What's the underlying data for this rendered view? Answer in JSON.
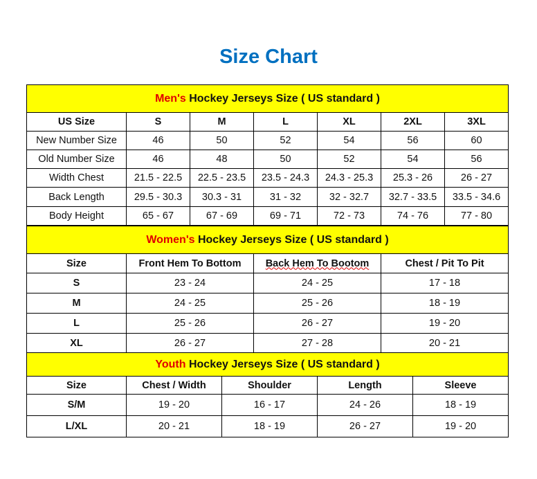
{
  "title": "Size Chart",
  "colors": {
    "title": "#0070c0",
    "header_bg": "#ffff00",
    "accent_red": "#e00000"
  },
  "mens": {
    "header_red": "Men's",
    "header_rest": " Hockey Jerseys Size ( US standard )",
    "columns": [
      "US Size",
      "S",
      "M",
      "L",
      "XL",
      "2XL",
      "3XL"
    ],
    "rows": [
      [
        "New Number Size",
        "46",
        "50",
        "52",
        "54",
        "56",
        "60"
      ],
      [
        "Old Number Size",
        "46",
        "48",
        "50",
        "52",
        "54",
        "56"
      ],
      [
        "Width Chest",
        "21.5 - 22.5",
        "22.5 - 23.5",
        "23.5 - 24.3",
        "24.3 - 25.3",
        "25.3 - 26",
        "26 - 27"
      ],
      [
        "Back Length",
        "29.5 - 30.3",
        "30.3 - 31",
        "31 - 32",
        "32 - 32.7",
        "32.7 - 33.5",
        "33.5 - 34.6"
      ],
      [
        "Body Height",
        "65 - 67",
        "67 - 69",
        "69 - 71",
        "72 - 73",
        "74 - 76",
        "77 - 80"
      ]
    ]
  },
  "womens": {
    "header_red": "Women's",
    "header_rest": " Hockey Jerseys Size ( US standard )",
    "columns": [
      "Size",
      "Front Hem To Bottom",
      "Back Hem To Bootom",
      "Chest / Pit To Pit"
    ],
    "rows": [
      [
        "S",
        "23 - 24",
        "24 - 25",
        "17 - 18"
      ],
      [
        "M",
        "24 - 25",
        "25 - 26",
        "18 - 19"
      ],
      [
        "L",
        "25 - 26",
        "26 - 27",
        "19 - 20"
      ],
      [
        "XL",
        "26 - 27",
        "27 - 28",
        "20 - 21"
      ]
    ]
  },
  "youth": {
    "header_red": "Youth",
    "header_rest": " Hockey Jerseys Size ( US standard )",
    "columns": [
      "Size",
      "Chest / Width",
      "Shoulder",
      "Length",
      "Sleeve"
    ],
    "rows": [
      [
        "S/M",
        "19 - 20",
        "16 - 17",
        "24 - 26",
        "18 - 19"
      ],
      [
        "L/XL",
        "20 - 21",
        "18 - 19",
        "26 - 27",
        "19 - 20"
      ]
    ]
  }
}
